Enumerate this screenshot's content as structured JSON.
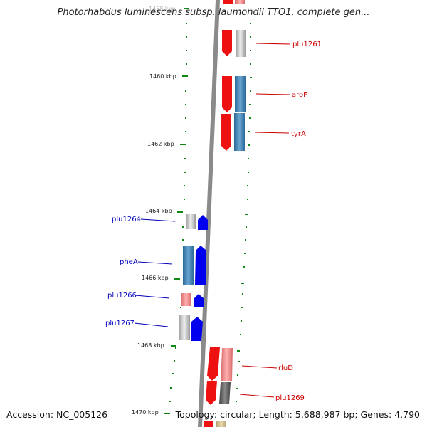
{
  "title": "Photorhabdus luminescens subsp. laumondii TTO1, complete gen...",
  "accession": "Accession: NC_005126",
  "topology": "Topology: circular; Length: 5,688,987 bp; Genes: 4,790",
  "colors": {
    "forward_label": "#cc0000",
    "reverse_label": "#0000bb",
    "tick": "#118811",
    "backbone": "#8a8a8a"
  },
  "ticks": [
    "1460 kbp",
    "1462 kbp",
    "1464 kbp",
    "1466 kbp",
    "1468 kbp",
    "1470 kbp"
  ],
  "top_clipped_tick": "1458 kbp",
  "genes_forward": [
    "plu1261",
    "aroF",
    "tyrA",
    "rluD",
    "plu1269"
  ],
  "genes_reverse": [
    "plu1264",
    "pheA",
    "plu1266",
    "plu1267"
  ]
}
